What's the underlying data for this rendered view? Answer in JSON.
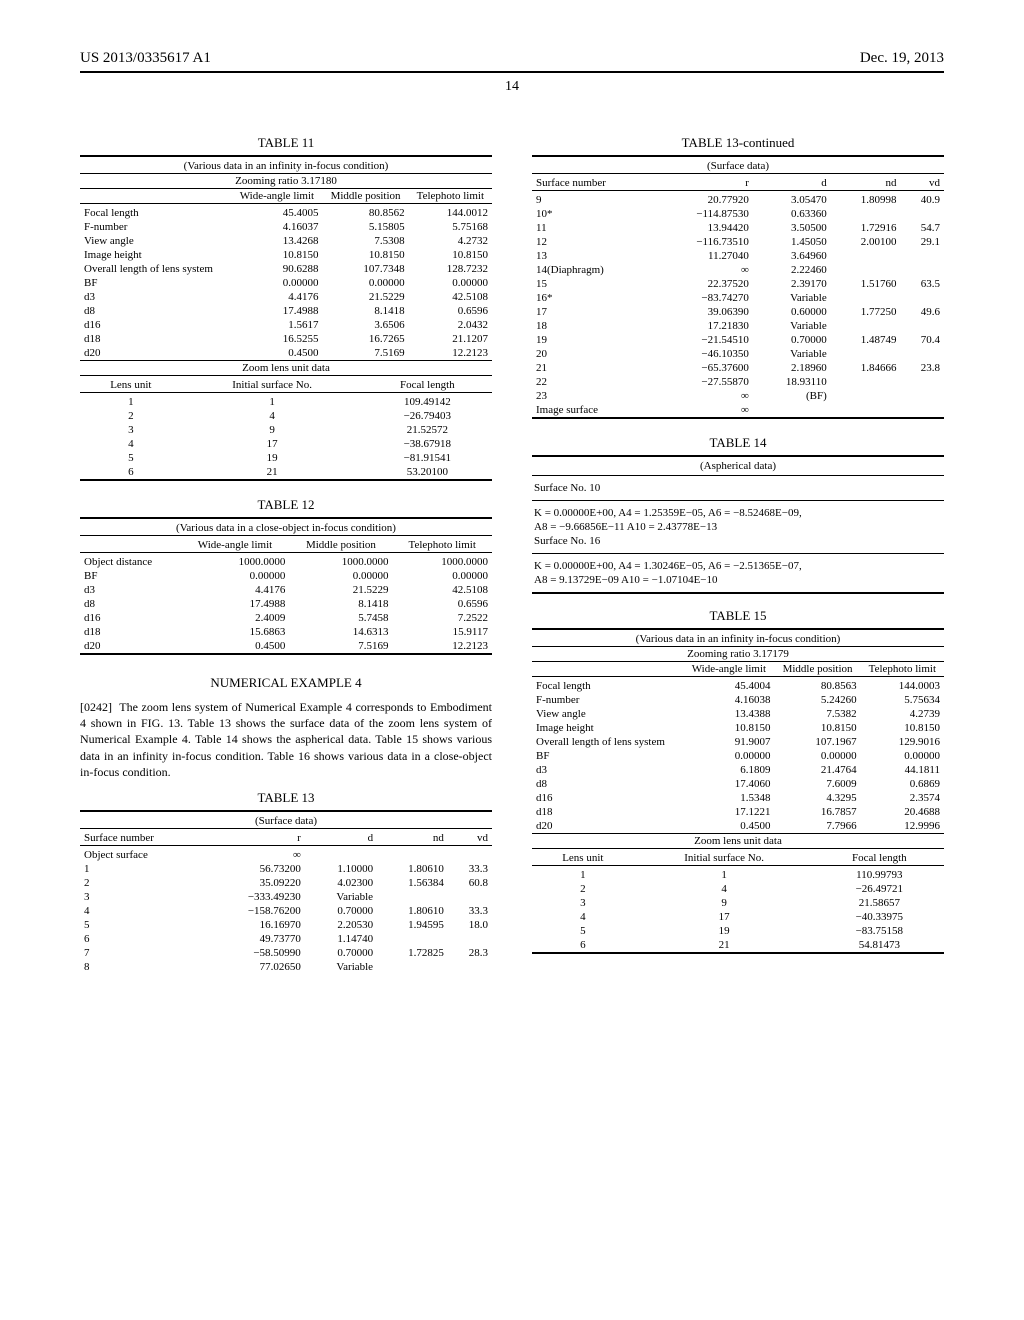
{
  "header": {
    "left": "US 2013/0335617 A1",
    "right": "Dec. 19, 2013"
  },
  "pageNumber": "14",
  "table11": {
    "title": "TABLE 11",
    "caption": "(Various data in an infinity in-focus condition)",
    "zooming": "Zooming ratio 3.17180",
    "cols": [
      "",
      "Wide-angle limit",
      "Middle position",
      "Telephoto limit"
    ],
    "rows": [
      [
        "Focal length",
        "45.4005",
        "80.8562",
        "144.0012"
      ],
      [
        "F-number",
        "4.16037",
        "5.15805",
        "5.75168"
      ],
      [
        "View angle",
        "13.4268",
        "7.5308",
        "4.2732"
      ],
      [
        "Image height",
        "10.8150",
        "10.8150",
        "10.8150"
      ],
      [
        "Overall length of lens system",
        "90.6288",
        "107.7348",
        "128.7232"
      ],
      [
        "BF",
        "0.00000",
        "0.00000",
        "0.00000"
      ],
      [
        "d3",
        "4.4176",
        "21.5229",
        "42.5108"
      ],
      [
        "d8",
        "17.4988",
        "8.1418",
        "0.6596"
      ],
      [
        "d16",
        "1.5617",
        "3.6506",
        "2.0432"
      ],
      [
        "d18",
        "16.5255",
        "16.7265",
        "21.1207"
      ],
      [
        "d20",
        "0.4500",
        "7.5169",
        "12.2123"
      ]
    ],
    "zoomUnitCaption": "Zoom lens unit data",
    "lensCols": [
      "Lens unit",
      "Initial surface No.",
      "Focal length"
    ],
    "lensRows": [
      [
        "1",
        "1",
        "109.49142"
      ],
      [
        "2",
        "4",
        "−26.79403"
      ],
      [
        "3",
        "9",
        "21.52572"
      ],
      [
        "4",
        "17",
        "−38.67918"
      ],
      [
        "5",
        "19",
        "−81.91541"
      ],
      [
        "6",
        "21",
        "53.20100"
      ]
    ]
  },
  "table12": {
    "title": "TABLE 12",
    "caption": "(Various data in a close-object in-focus condition)",
    "cols": [
      "",
      "Wide-angle limit",
      "Middle position",
      "Telephoto limit"
    ],
    "rows": [
      [
        "Object distance",
        "1000.0000",
        "1000.0000",
        "1000.0000"
      ],
      [
        "BF",
        "0.00000",
        "0.00000",
        "0.00000"
      ],
      [
        "d3",
        "4.4176",
        "21.5229",
        "42.5108"
      ],
      [
        "d8",
        "17.4988",
        "8.1418",
        "0.6596"
      ],
      [
        "d16",
        "2.4009",
        "5.7458",
        "7.2522"
      ],
      [
        "d18",
        "15.6863",
        "14.6313",
        "15.9117"
      ],
      [
        "d20",
        "0.4500",
        "7.5169",
        "12.2123"
      ]
    ]
  },
  "example4": {
    "heading": "NUMERICAL EXAMPLE 4",
    "paraNum": "[0242]",
    "paraText": "The zoom lens system of Numerical Example 4 corresponds to Embodiment 4 shown in FIG. 13. Table 13 shows the surface data of the zoom lens system of Numerical Example 4. Table 14 shows the aspherical data. Table 15 shows various data in an infinity in-focus condition. Table 16 shows various data in a close-object in-focus condition."
  },
  "table13a": {
    "title": "TABLE 13",
    "caption": "(Surface data)",
    "cols": [
      "Surface number",
      "r",
      "d",
      "nd",
      "vd"
    ],
    "rows": [
      [
        "Object surface",
        "∞",
        "",
        "",
        ""
      ],
      [
        "1",
        "56.73200",
        "1.10000",
        "1.80610",
        "33.3"
      ],
      [
        "2",
        "35.09220",
        "4.02300",
        "1.56384",
        "60.8"
      ],
      [
        "3",
        "−333.49230",
        "Variable",
        "",
        ""
      ],
      [
        "4",
        "−158.76200",
        "0.70000",
        "1.80610",
        "33.3"
      ],
      [
        "5",
        "16.16970",
        "2.20530",
        "1.94595",
        "18.0"
      ],
      [
        "6",
        "49.73770",
        "1.14740",
        "",
        ""
      ],
      [
        "7",
        "−58.50990",
        "0.70000",
        "1.72825",
        "28.3"
      ],
      [
        "8",
        "77.02650",
        "Variable",
        "",
        ""
      ]
    ]
  },
  "table13b": {
    "title": "TABLE 13-continued",
    "caption": "(Surface data)",
    "cols": [
      "Surface number",
      "r",
      "d",
      "nd",
      "vd"
    ],
    "rows": [
      [
        "9",
        "20.77920",
        "3.05470",
        "1.80998",
        "40.9"
      ],
      [
        "10*",
        "−114.87530",
        "0.63360",
        "",
        ""
      ],
      [
        "11",
        "13.94420",
        "3.50500",
        "1.72916",
        "54.7"
      ],
      [
        "12",
        "−116.73510",
        "1.45050",
        "2.00100",
        "29.1"
      ],
      [
        "13",
        "11.27040",
        "3.64960",
        "",
        ""
      ],
      [
        "14(Diaphragm)",
        "∞",
        "2.22460",
        "",
        ""
      ],
      [
        "15",
        "22.37520",
        "2.39170",
        "1.51760",
        "63.5"
      ],
      [
        "16*",
        "−83.74270",
        "Variable",
        "",
        ""
      ],
      [
        "17",
        "39.06390",
        "0.60000",
        "1.77250",
        "49.6"
      ],
      [
        "18",
        "17.21830",
        "Variable",
        "",
        ""
      ],
      [
        "19",
        "−21.54510",
        "0.70000",
        "1.48749",
        "70.4"
      ],
      [
        "20",
        "−46.10350",
        "Variable",
        "",
        ""
      ],
      [
        "21",
        "−65.37600",
        "2.18960",
        "1.84666",
        "23.8"
      ],
      [
        "22",
        "−27.55870",
        "18.93110",
        "",
        ""
      ],
      [
        "23",
        "∞",
        "(BF)",
        "",
        ""
      ],
      [
        "Image surface",
        "∞",
        "",
        "",
        ""
      ]
    ]
  },
  "table14": {
    "title": "TABLE 14",
    "caption": "(Aspherical data)",
    "s10label": "Surface No. 10",
    "s10line1": "K = 0.00000E+00, A4 = 1.25359E−05, A6 = −8.52468E−09,",
    "s10line2": "A8 = −9.66856E−11 A10 = 2.43778E−13",
    "s16label": "Surface No. 16",
    "s16line1": "K = 0.00000E+00, A4 = 1.30246E−05, A6 = −2.51365E−07,",
    "s16line2": "A8 = 9.13729E−09 A10 = −1.07104E−10"
  },
  "table15": {
    "title": "TABLE 15",
    "caption": "(Various data in an infinity in-focus condition)",
    "zooming": "Zooming ratio 3.17179",
    "cols": [
      "",
      "Wide-angle limit",
      "Middle position",
      "Telephoto limit"
    ],
    "rows": [
      [
        "Focal length",
        "45.4004",
        "80.8563",
        "144.0003"
      ],
      [
        "F-number",
        "4.16038",
        "5.24260",
        "5.75634"
      ],
      [
        "View angle",
        "13.4388",
        "7.5382",
        "4.2739"
      ],
      [
        "Image height",
        "10.8150",
        "10.8150",
        "10.8150"
      ],
      [
        "Overall length of lens system",
        "91.9007",
        "107.1967",
        "129.9016"
      ],
      [
        "BF",
        "0.00000",
        "0.00000",
        "0.00000"
      ],
      [
        "d3",
        "6.1809",
        "21.4764",
        "44.1811"
      ],
      [
        "d8",
        "17.4060",
        "7.6009",
        "0.6869"
      ],
      [
        "d16",
        "1.5348",
        "4.3295",
        "2.3574"
      ],
      [
        "d18",
        "17.1221",
        "16.7857",
        "20.4688"
      ],
      [
        "d20",
        "0.4500",
        "7.7966",
        "12.9996"
      ]
    ],
    "zoomUnitCaption": "Zoom lens unit data",
    "lensCols": [
      "Lens unit",
      "Initial surface No.",
      "Focal length"
    ],
    "lensRows": [
      [
        "1",
        "1",
        "110.99793"
      ],
      [
        "2",
        "4",
        "−26.49721"
      ],
      [
        "3",
        "9",
        "21.58657"
      ],
      [
        "4",
        "17",
        "−40.33975"
      ],
      [
        "5",
        "19",
        "−83.75158"
      ],
      [
        "6",
        "21",
        "54.81473"
      ]
    ]
  }
}
